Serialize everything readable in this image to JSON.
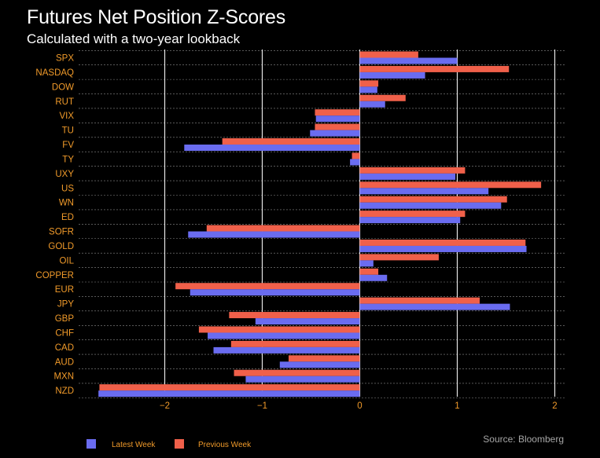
{
  "header": {
    "title": "Futures Net Position Z-Scores",
    "subtitle": "Calculated with a two-year lookback"
  },
  "footer": {
    "source": "Source: Bloomberg"
  },
  "colors": {
    "latest": "#6a6cf0",
    "previous": "#f0604a",
    "label": "#f09a2a",
    "grid": "#ffffff",
    "background": "#000000"
  },
  "chart_data": {
    "type": "bar",
    "orientation": "horizontal",
    "categories": [
      "SPX",
      "NASDAQ",
      "DOW",
      "RUT",
      "VIX",
      "TU",
      "FV",
      "TY",
      "UXY",
      "US",
      "WN",
      "ED",
      "SOFR",
      "GOLD",
      "OIL",
      "COPPER",
      "EUR",
      "JPY",
      "GBP",
      "CHF",
      "CAD",
      "AUD",
      "MXN",
      "NZD"
    ],
    "series": [
      {
        "name": "Latest Week",
        "color": "#6a6cf0",
        "values": [
          1.0,
          0.67,
          0.18,
          0.26,
          -0.45,
          -0.51,
          -1.8,
          -0.1,
          0.98,
          1.32,
          1.45,
          1.03,
          -1.76,
          1.71,
          0.14,
          0.28,
          -1.74,
          1.54,
          -1.07,
          -1.56,
          -1.5,
          -0.82,
          -1.17,
          -2.68
        ]
      },
      {
        "name": "Previous Week",
        "color": "#f0604a",
        "values": [
          0.6,
          1.53,
          0.19,
          0.47,
          -0.46,
          -0.46,
          -1.41,
          -0.08,
          1.08,
          1.86,
          1.51,
          1.08,
          -1.57,
          1.7,
          0.81,
          0.19,
          -1.89,
          1.23,
          -1.34,
          -1.65,
          -1.32,
          -0.73,
          -1.29,
          -2.67
        ]
      }
    ],
    "x_ticks": [
      -2,
      -1,
      0,
      1,
      2
    ],
    "x_tick_labels": [
      "−2",
      "−1",
      "0",
      "1",
      "2"
    ],
    "xlim": [
      -2.7,
      2.1
    ],
    "grid": true,
    "legend_position": "bottom-left"
  }
}
